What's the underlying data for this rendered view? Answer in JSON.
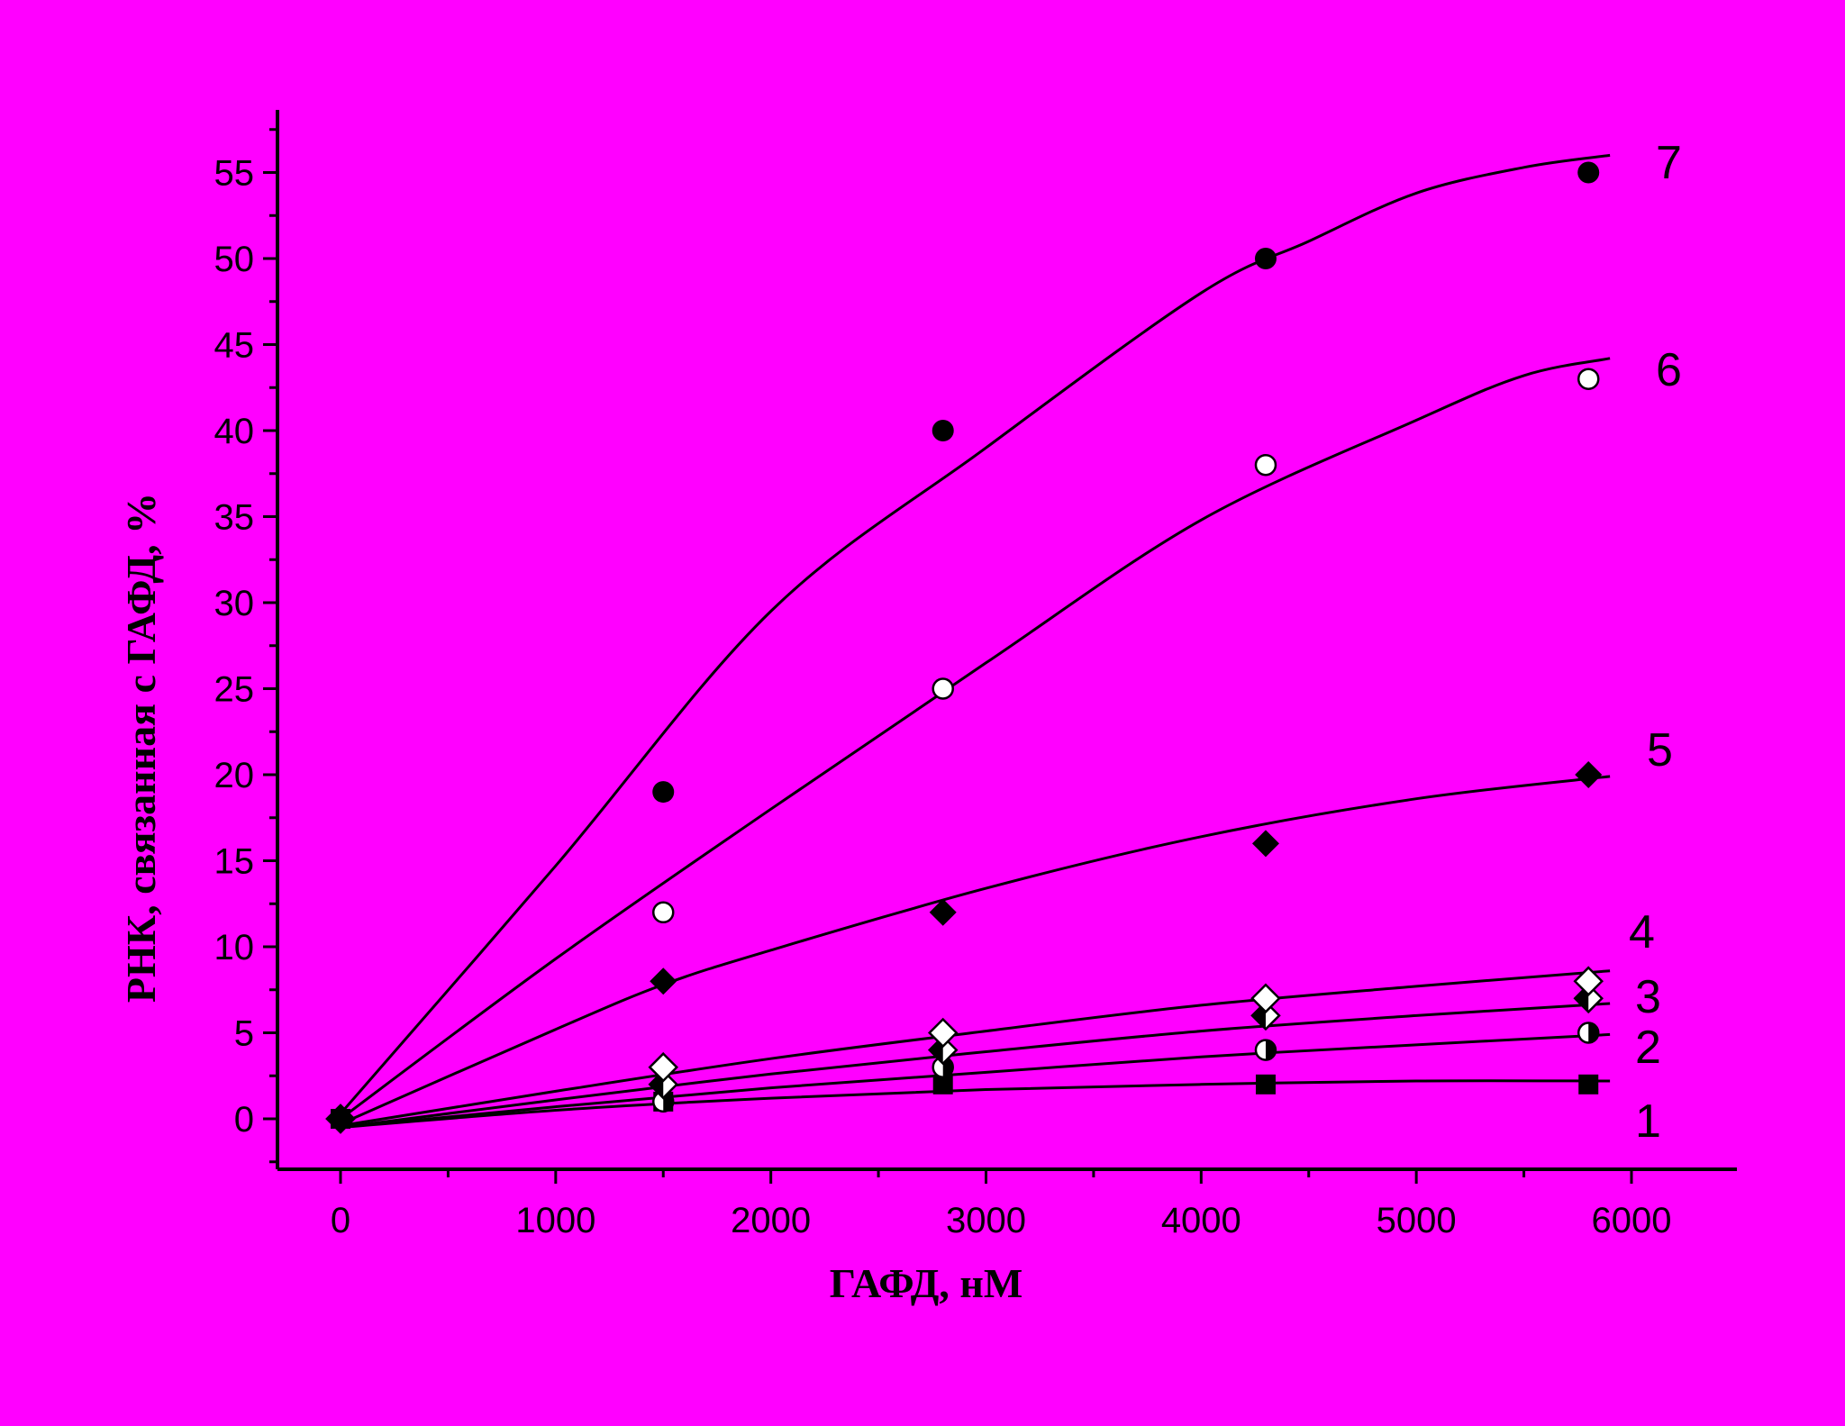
{
  "chart_data": {
    "type": "scatter",
    "title": "",
    "xlabel": "ГАФД, нМ",
    "ylabel": "РНК, связанная с ГАФД, %",
    "xlim": [
      -300,
      6500
    ],
    "ylim": [
      -3,
      58
    ],
    "x_ticks": [
      0,
      1000,
      2000,
      3000,
      4000,
      5000,
      6000
    ],
    "y_ticks": [
      0,
      5,
      10,
      15,
      20,
      25,
      30,
      35,
      40,
      45,
      50,
      55
    ],
    "grid": false,
    "legend": "none",
    "series": [
      {
        "label": "1",
        "marker": "filled-square",
        "x": [
          0,
          1500,
          2800,
          4300,
          5800
        ],
        "y": [
          0,
          1,
          2,
          2,
          2
        ],
        "fit_x": [
          0,
          1000,
          2000,
          3000,
          4000,
          5000,
          5900
        ],
        "fit_y": [
          -0.5,
          0.5,
          1.2,
          1.7,
          2.0,
          2.2,
          2.2
        ]
      },
      {
        "label": "2",
        "marker": "half-filled-circle",
        "x": [
          0,
          1500,
          2800,
          4300,
          5800
        ],
        "y": [
          0,
          1,
          3,
          4,
          5
        ],
        "fit_x": [
          0,
          1000,
          2000,
          3000,
          4000,
          5000,
          5900
        ],
        "fit_y": [
          -0.5,
          0.7,
          1.8,
          2.7,
          3.6,
          4.3,
          4.9
        ]
      },
      {
        "label": "3",
        "marker": "half-filled-diamond",
        "x": [
          0,
          1500,
          2800,
          4300,
          5800
        ],
        "y": [
          0,
          2,
          4,
          6,
          7
        ],
        "fit_x": [
          0,
          1000,
          2000,
          3000,
          4000,
          5000,
          5900
        ],
        "fit_y": [
          -0.5,
          1.1,
          2.6,
          3.9,
          5.1,
          6.0,
          6.7
        ]
      },
      {
        "label": "4",
        "marker": "open-diamond",
        "x": [
          0,
          1500,
          2800,
          4300,
          5800
        ],
        "y": [
          0,
          3,
          5,
          7,
          8
        ],
        "fit_x": [
          0,
          1000,
          2000,
          3000,
          4000,
          5000,
          5900
        ],
        "fit_y": [
          -0.4,
          1.6,
          3.5,
          5.1,
          6.6,
          7.7,
          8.6
        ]
      },
      {
        "label": "5",
        "marker": "filled-diamond",
        "x": [
          0,
          1500,
          2800,
          4300,
          5800
        ],
        "y": [
          0,
          8,
          12,
          16,
          20
        ],
        "fit_x": [
          0,
          1000,
          1500,
          2000,
          3000,
          4000,
          5000,
          5900
        ],
        "fit_y": [
          -0.3,
          5.2,
          7.8,
          9.8,
          13.4,
          16.4,
          18.6,
          19.9
        ]
      },
      {
        "label": "6",
        "marker": "open-circle",
        "x": [
          0,
          1500,
          2800,
          4300,
          5800
        ],
        "y": [
          0,
          12,
          25,
          38,
          43
        ],
        "fit_x": [
          0,
          1000,
          2000,
          3000,
          4000,
          5000,
          5500,
          5900
        ],
        "fit_y": [
          0,
          9.3,
          18.0,
          26.5,
          34.8,
          40.6,
          43.2,
          44.2
        ]
      },
      {
        "label": "7",
        "marker": "filled-circle",
        "x": [
          0,
          1500,
          2800,
          4300,
          5800
        ],
        "y": [
          0,
          19,
          40,
          50,
          55
        ],
        "fit_x": [
          0,
          1000,
          2000,
          3000,
          4000,
          4500,
          5000,
          5500,
          5900
        ],
        "fit_y": [
          0.3,
          14.7,
          29.5,
          39.0,
          48.0,
          51.0,
          53.8,
          55.3,
          56.0
        ]
      }
    ]
  }
}
